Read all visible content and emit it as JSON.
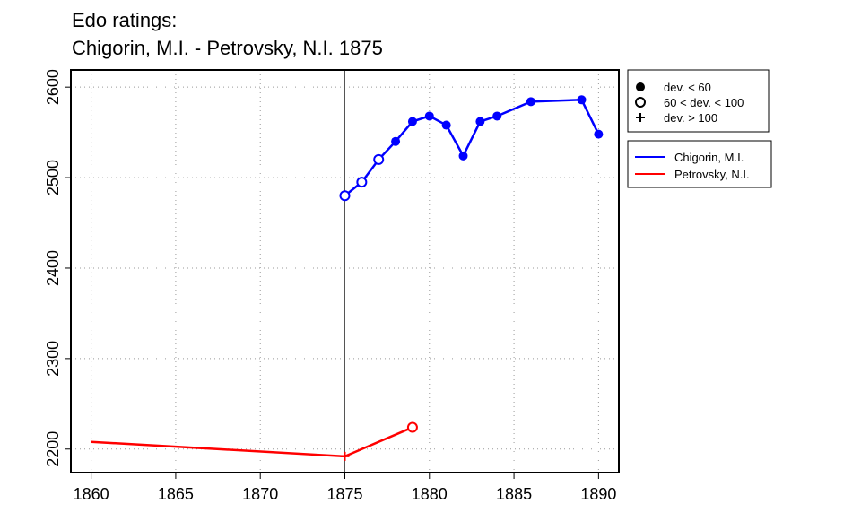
{
  "chart_data": {
    "type": "line",
    "title": "Edo ratings:",
    "subtitle": "Chigorin, M.I. - Petrovsky, N.I. 1875",
    "xlim": [
      1858.8,
      1891.2
    ],
    "xticks": [
      1860,
      1865,
      1870,
      1875,
      1880,
      1885,
      1890
    ],
    "ylim": [
      2174,
      2619
    ],
    "yticks": [
      2200,
      2300,
      2400,
      2500,
      2600
    ],
    "grid": true,
    "vline": 1875,
    "marker_legend": [
      {
        "label": "dev. < 60",
        "marker": "filled"
      },
      {
        "label": "60 < dev. < 100",
        "marker": "open"
      },
      {
        "label": "dev. > 100",
        "marker": "plus"
      }
    ],
    "series": [
      {
        "name": "Chigorin, M.I.",
        "color": "#0000ff",
        "x": [
          1875,
          1876,
          1877,
          1878,
          1879,
          1880,
          1881,
          1882,
          1883,
          1884,
          1886,
          1889,
          1890
        ],
        "values": [
          2480,
          2495,
          2520,
          2540,
          2562,
          2568,
          2558,
          2524,
          2562,
          2568,
          2584,
          2586,
          2548
        ],
        "markers": [
          "open",
          "open",
          "open",
          "filled",
          "filled",
          "filled",
          "filled",
          "filled",
          "filled",
          "filled",
          "filled",
          "filled",
          "filled"
        ]
      },
      {
        "name": "Petrovsky, N.I.",
        "color": "#ff0000",
        "x": [
          1860,
          1875,
          1879
        ],
        "values": [
          2208,
          2192,
          2224
        ],
        "markers": [
          null,
          "plus",
          "open"
        ]
      }
    ]
  }
}
